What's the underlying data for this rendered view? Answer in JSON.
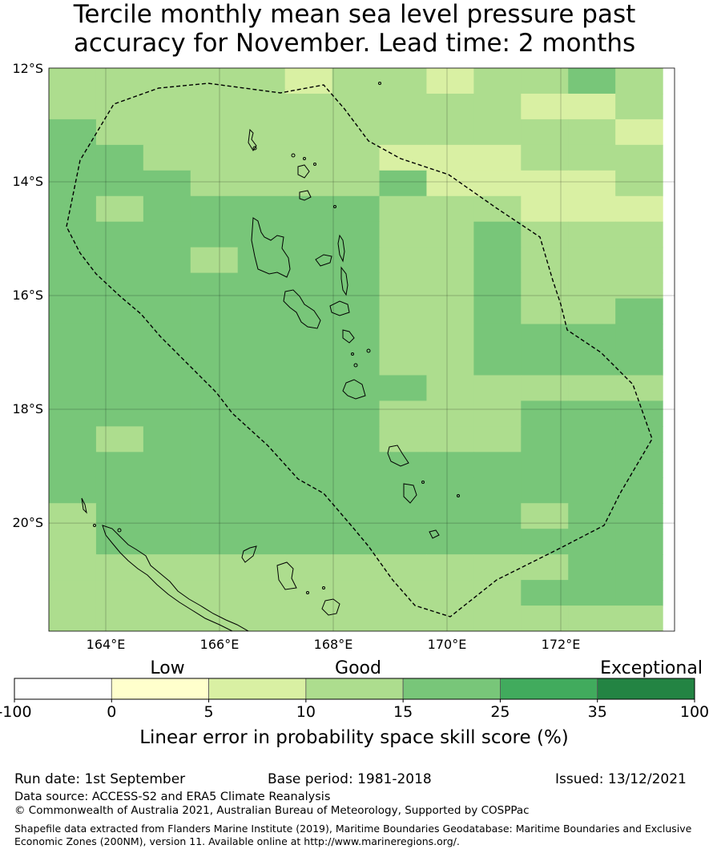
{
  "title_line1": "Tercile monthly mean sea level pressure past",
  "title_line2": "accuracy for November. Lead time: 2 months",
  "map": {
    "lat_labels": [
      "12°S",
      "14°S",
      "16°S",
      "18°S",
      "20°S"
    ],
    "lon_labels": [
      "164°E",
      "166°E",
      "168°E",
      "170°E",
      "172°E"
    ],
    "extent": {
      "lon_min": 163,
      "lon_max": 174,
      "lat_min": -21.9,
      "lat_max": -12
    },
    "cell_size_deg": 0.83,
    "grid_levels": [
      "3333323323343",
      "3333333333223",
      "4333333333332",
      "4433333222333",
      "4443333422223",
      "4344444333222",
      "4444444334333",
      "4443444334333",
      "4444444334333",
      "4444444334334",
      "4444444334444",
      "4444444334444",
      "4444444433333",
      "4444444333444",
      "4344444333444",
      "4444444444444",
      "4444444444444",
      "3444444444344",
      "3444444444444",
      "3333333333344",
      "3333333333444",
      "3333333333333"
    ]
  },
  "colorbar": {
    "categories": [
      {
        "range": [
          -100,
          0
        ],
        "color": "#ffffff"
      },
      {
        "range": [
          0,
          5
        ],
        "color": "#ffffcc"
      },
      {
        "range": [
          5,
          10
        ],
        "color": "#d9f0a3"
      },
      {
        "range": [
          10,
          15
        ],
        "color": "#addd8e"
      },
      {
        "range": [
          15,
          25
        ],
        "color": "#78c679"
      },
      {
        "range": [
          25,
          35
        ],
        "color": "#41ab5d"
      },
      {
        "range": [
          35,
          100
        ],
        "color": "#238443"
      }
    ],
    "tick_labels": [
      "-100",
      "0",
      "5",
      "10",
      "15",
      "25",
      "35",
      "100"
    ],
    "category_labels": [
      "Low",
      "Good",
      "Exceptional"
    ],
    "label": "Linear error in probability space skill score (%)"
  },
  "footer": {
    "run_date": "Run date: 1st September",
    "base_period": "Base period: 1981-2018",
    "issued": "Issued: 13/12/2021",
    "data_source": "Data source: ACCESS-S2 and ERA5 Climate Reanalysis",
    "copyright": "© Commonwealth of Australia 2021, Australian Bureau of Meteorology, Supported by COSPPac",
    "shapefile_line1": "Shapefile data extracted from Flanders Marine Institute (2019), Maritime Boundaries Geodatabase: Maritime Boundaries and Exclusive",
    "shapefile_line2": "Economic Zones (200NM), version 11. Available online at http://www.marineregions.org/."
  }
}
